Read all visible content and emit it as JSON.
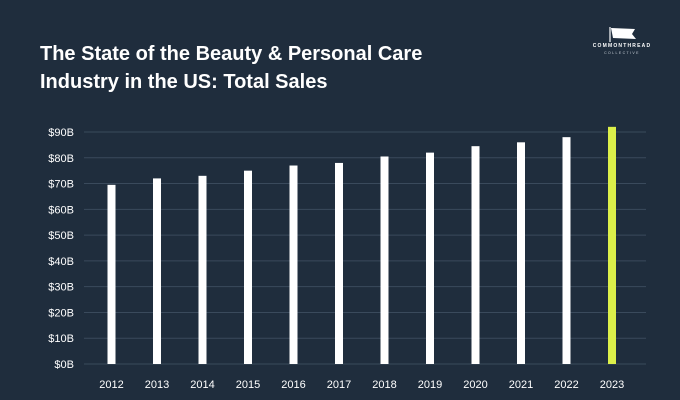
{
  "brand": {
    "name": "COMMONTHREAD",
    "sub": "COLLECTIVE",
    "icon": "flag-icon"
  },
  "colors": {
    "background": "#1f2d3d",
    "bar": "#ffffff",
    "highlight": "#dcf04a",
    "grid": "#3a4a5c",
    "text": "#ffffff"
  },
  "chart_data": {
    "type": "bar",
    "title": "The State of the Beauty & Personal Care Industry in the US: Total Sales",
    "xlabel": "",
    "ylabel": "",
    "categories": [
      "2012",
      "2013",
      "2014",
      "2015",
      "2016",
      "2017",
      "2018",
      "2019",
      "2020",
      "2021",
      "2022",
      "2023"
    ],
    "values": [
      69.5,
      72,
      73,
      75,
      77,
      78,
      80.5,
      82,
      84.5,
      86,
      88,
      92
    ],
    "highlight_category": "2023",
    "ylim": [
      0,
      90
    ],
    "yticks": [
      0,
      10,
      20,
      30,
      40,
      50,
      60,
      70,
      80,
      90
    ],
    "ytick_labels": [
      "$0B",
      "$10B",
      "$20B",
      "$30B",
      "$40B",
      "$50B",
      "$60B",
      "$70B",
      "$80B",
      "$90B"
    ],
    "grid": true,
    "legend": "none"
  }
}
